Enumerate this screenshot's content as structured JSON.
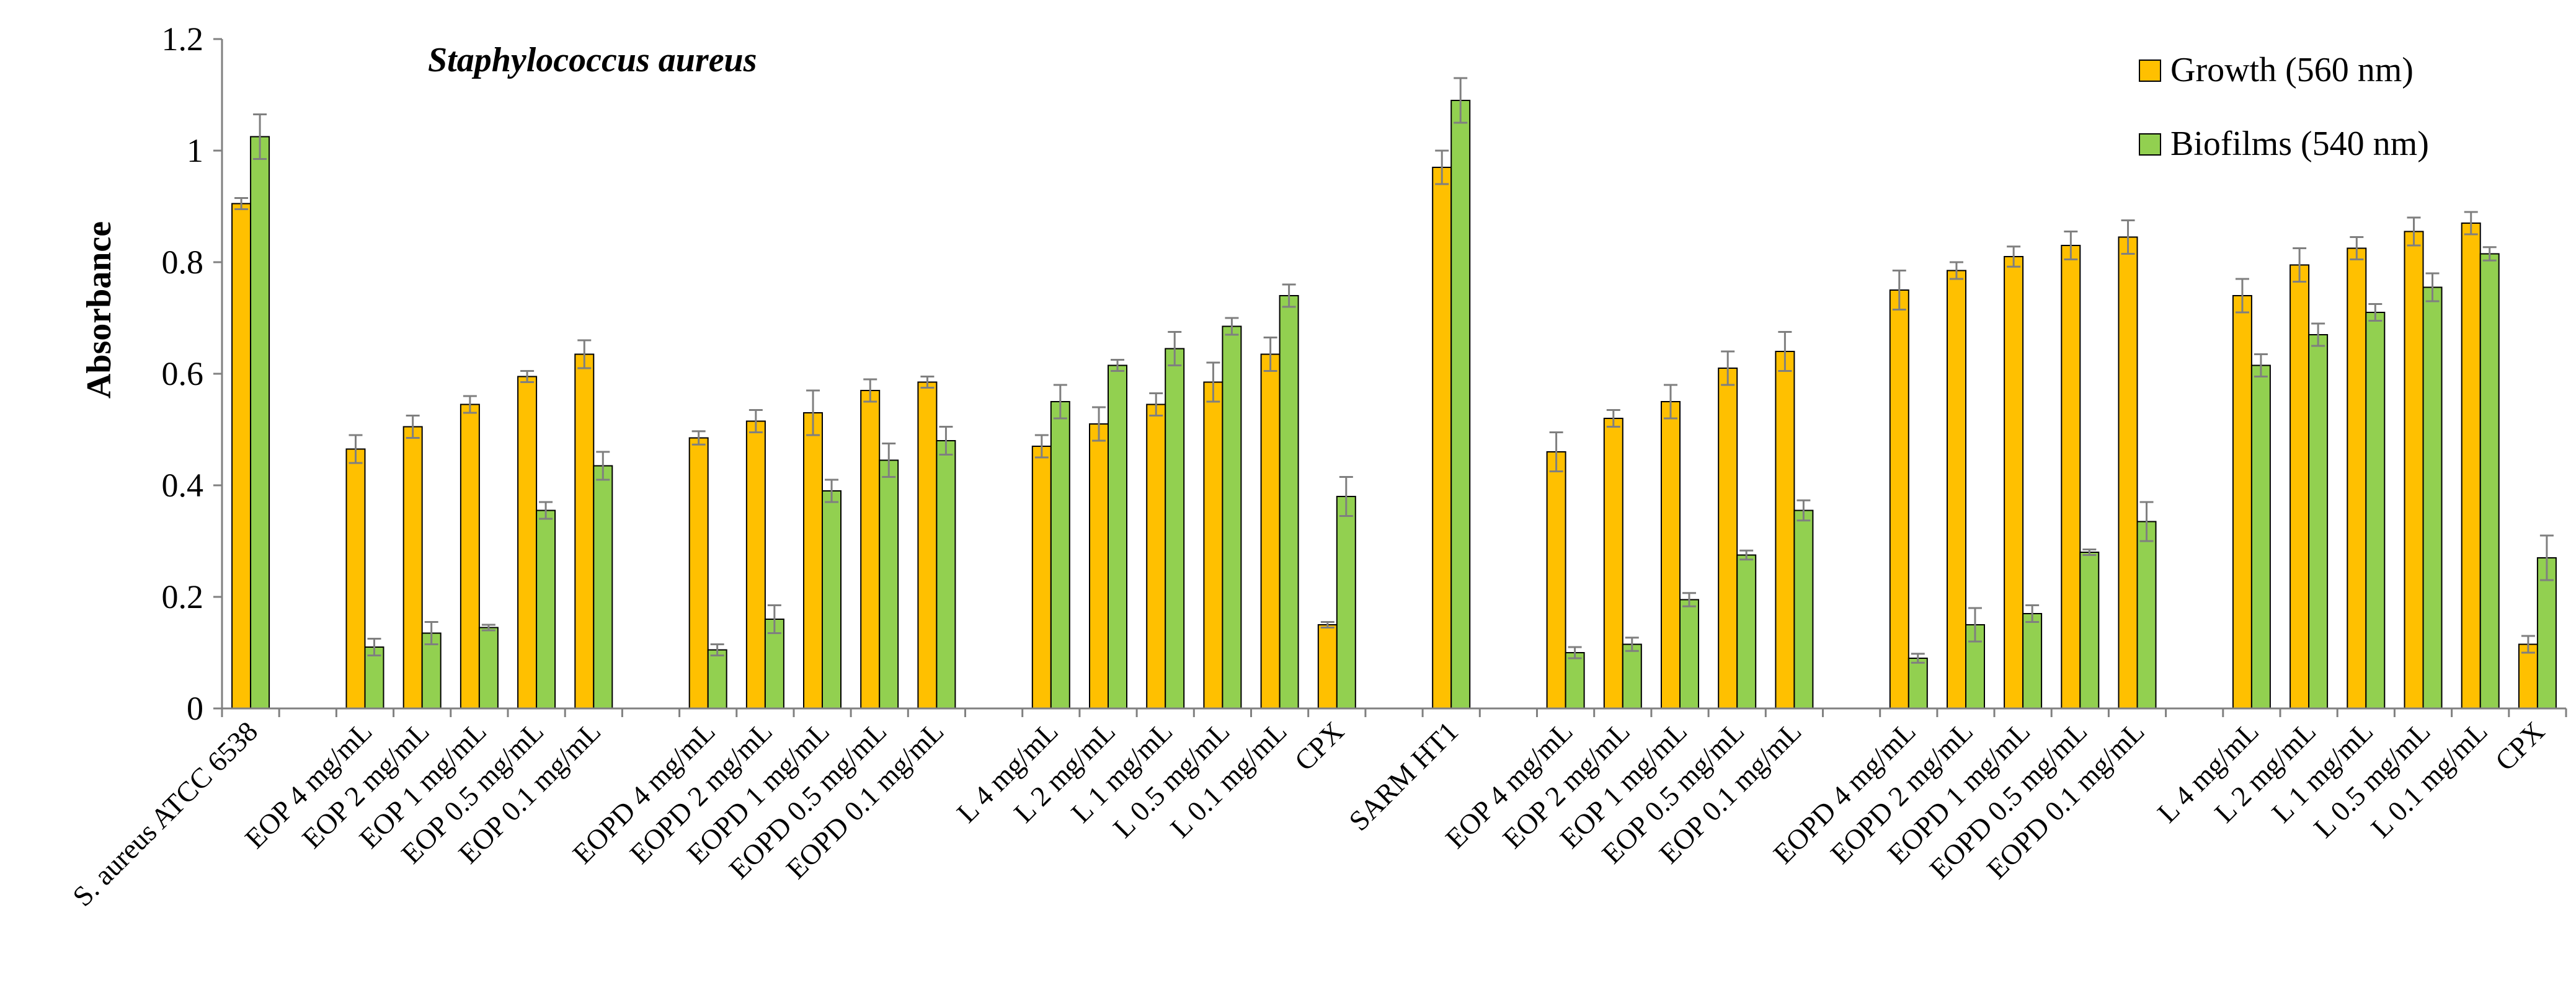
{
  "chart_data": {
    "type": "bar",
    "title": "Staphylococcus aureus",
    "xlabel": "",
    "ylabel": "Absorbance",
    "ylim": [
      0,
      1.2
    ],
    "yticks": [
      "0",
      "0.2",
      "0.4",
      "0.6",
      "0.8",
      "1",
      "1.2"
    ],
    "grid": false,
    "legend_position": "top-right",
    "categories": [
      "S. aureus ATCC 6538",
      "",
      "EOP 4 mg/mL",
      "EOP 2 mg/mL",
      "EOP 1 mg/mL",
      "EOP 0.5 mg/mL",
      "EOP 0.1 mg/mL",
      "",
      "EOPD 4 mg/mL",
      "EOPD 2 mg/mL",
      "EOPD 1 mg/mL",
      "EOPD 0.5 mg/mL",
      "EOPD 0.1 mg/mL",
      "",
      "L 4 mg/mL",
      "L 2 mg/mL",
      "L 1 mg/mL",
      "L 0.5 mg/mL",
      "L 0.1 mg/mL",
      "CPX",
      "",
      "SARM  HT1",
      "",
      "EOP 4 mg/mL",
      "EOP 2 mg/mL",
      "EOP 1 mg/mL",
      "EOP 0.5 mg/mL",
      "EOP 0.1 mg/mL",
      "",
      "EOPD 4 mg/mL",
      "EOPD 2 mg/mL",
      "EOPD 1 mg/mL",
      "EOPD 0.5 mg/mL",
      "EOPD 0.1 mg/mL",
      "",
      "L 4 mg/mL",
      "L 2 mg/mL",
      "L 1 mg/mL",
      "L 0.5 mg/mL",
      "L 0.1 mg/mL",
      "CPX"
    ],
    "series": [
      {
        "name": "Growth (560 nm)",
        "color": "#FFC000",
        "values": [
          0.905,
          null,
          0.465,
          0.505,
          0.545,
          0.595,
          0.635,
          null,
          0.485,
          0.515,
          0.53,
          0.57,
          0.585,
          null,
          0.47,
          0.51,
          0.545,
          0.585,
          0.635,
          0.15,
          null,
          0.97,
          null,
          0.46,
          0.52,
          0.55,
          0.61,
          0.64,
          null,
          0.75,
          0.785,
          0.81,
          0.83,
          0.845,
          null,
          0.74,
          0.795,
          0.825,
          0.855,
          0.87,
          0.115
        ],
        "errors": [
          0.01,
          null,
          0.025,
          0.02,
          0.015,
          0.01,
          0.025,
          null,
          0.012,
          0.02,
          0.04,
          0.02,
          0.01,
          null,
          0.02,
          0.03,
          0.02,
          0.035,
          0.03,
          0.005,
          null,
          0.03,
          null,
          0.035,
          0.015,
          0.03,
          0.03,
          0.035,
          null,
          0.035,
          0.015,
          0.018,
          0.025,
          0.03,
          null,
          0.03,
          0.03,
          0.02,
          0.025,
          0.02,
          0.015
        ]
      },
      {
        "name": "Biofilms (540 nm)",
        "color": "#92D050",
        "values": [
          1.025,
          null,
          0.11,
          0.135,
          0.145,
          0.355,
          0.435,
          null,
          0.105,
          0.16,
          0.39,
          0.445,
          0.48,
          null,
          0.55,
          0.615,
          0.645,
          0.685,
          0.74,
          0.38,
          null,
          1.09,
          null,
          0.1,
          0.115,
          0.195,
          0.275,
          0.355,
          null,
          0.09,
          0.15,
          0.17,
          0.28,
          0.335,
          null,
          0.615,
          0.67,
          0.71,
          0.755,
          0.815,
          0.27
        ],
        "errors": [
          0.04,
          null,
          0.015,
          0.02,
          0.005,
          0.015,
          0.025,
          null,
          0.01,
          0.025,
          0.02,
          0.03,
          0.025,
          null,
          0.03,
          0.01,
          0.03,
          0.015,
          0.02,
          0.035,
          null,
          0.04,
          null,
          0.01,
          0.012,
          0.012,
          0.008,
          0.018,
          null,
          0.008,
          0.03,
          0.015,
          0.005,
          0.035,
          null,
          0.02,
          0.02,
          0.015,
          0.025,
          0.012,
          0.04
        ]
      }
    ]
  }
}
